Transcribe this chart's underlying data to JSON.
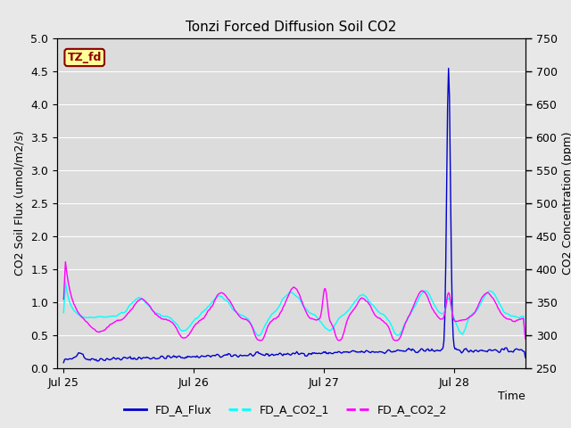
{
  "title": "Tonzi Forced Diffusion Soil CO2",
  "xlabel": "Time",
  "ylabel_left": "CO2 Soil Flux (umol/m2/s)",
  "ylabel_right": "CO2 Concentration (ppm)",
  "ylim_left": [
    0.0,
    5.0
  ],
  "ylim_right": [
    250,
    750
  ],
  "yticks_left": [
    0.0,
    0.5,
    1.0,
    1.5,
    2.0,
    2.5,
    3.0,
    3.5,
    4.0,
    4.5,
    5.0
  ],
  "yticks_right": [
    250,
    300,
    350,
    400,
    450,
    500,
    550,
    600,
    650,
    700,
    750
  ],
  "xtick_labels": [
    "Jul 25",
    "Jul 26",
    "Jul 27",
    "Jul 28"
  ],
  "xtick_positions": [
    0,
    1,
    2,
    3
  ],
  "xlim": [
    -0.05,
    3.55
  ],
  "background_color": "#e8e8e8",
  "plot_bg_color": "#dcdcdc",
  "grid_color": "#ffffff",
  "flux_color": "#0000CD",
  "co2_1_color": "#00FFFF",
  "co2_2_color": "#FF00FF",
  "legend_items": [
    "FD_A_Flux",
    "FD_A_CO2_1",
    "FD_A_CO2_2"
  ],
  "site_label": "TZ_fd",
  "site_label_bg": "#FFFF99",
  "site_label_border": "#8B0000",
  "title_fontsize": 11,
  "axis_label_fontsize": 9,
  "tick_fontsize": 9,
  "legend_fontsize": 9
}
